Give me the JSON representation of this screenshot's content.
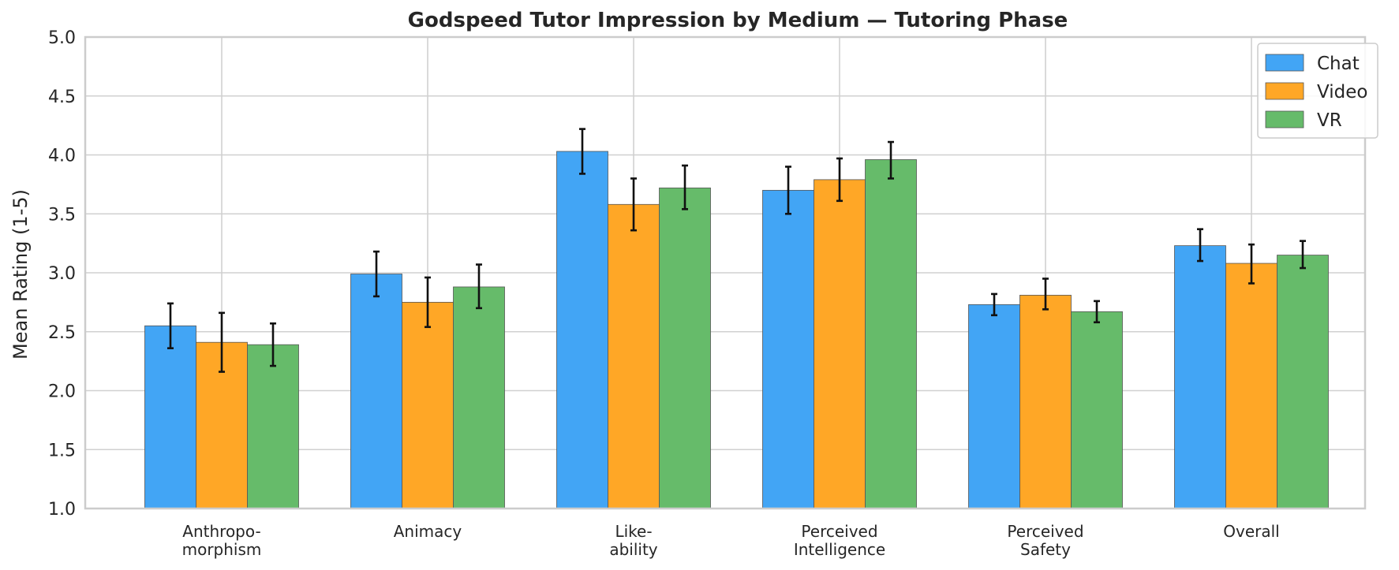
{
  "chart_data": {
    "type": "bar",
    "title": "Godspeed Tutor Impression by Medium — Tutoring Phase",
    "xlabel": "",
    "ylabel": "Mean Rating (1-5)",
    "ylim": [
      1.0,
      5.0
    ],
    "yticks": [
      "1.0",
      "1.5",
      "2.0",
      "2.5",
      "3.0",
      "3.5",
      "4.0",
      "4.5",
      "5.0"
    ],
    "categories": [
      [
        "Anthropo-",
        "morphism"
      ],
      [
        "Animacy"
      ],
      [
        "Like-",
        "ability"
      ],
      [
        "Perceived",
        "Intelligence"
      ],
      [
        "Perceived",
        "Safety"
      ],
      [
        "Overall"
      ]
    ],
    "grid": true,
    "legend_position": "top-right",
    "series": [
      {
        "name": "Chat",
        "color": "#42a5f5",
        "values": [
          2.55,
          2.99,
          4.03,
          3.7,
          2.73,
          3.23
        ],
        "err_low": [
          2.36,
          2.8,
          3.84,
          3.5,
          2.64,
          3.1
        ],
        "err_high": [
          2.74,
          3.18,
          4.22,
          3.9,
          2.82,
          3.37
        ]
      },
      {
        "name": "Video",
        "color": "#ffa726",
        "values": [
          2.41,
          2.75,
          3.58,
          3.79,
          2.81,
          3.08
        ],
        "err_low": [
          2.16,
          2.54,
          3.36,
          3.61,
          2.69,
          2.91
        ],
        "err_high": [
          2.66,
          2.96,
          3.8,
          3.97,
          2.95,
          3.24
        ]
      },
      {
        "name": "VR",
        "color": "#66bb6a",
        "values": [
          2.39,
          2.88,
          3.72,
          3.96,
          2.67,
          3.15
        ],
        "err_low": [
          2.21,
          2.7,
          3.54,
          3.8,
          2.58,
          3.04
        ],
        "err_high": [
          2.57,
          3.07,
          3.91,
          4.11,
          2.76,
          3.27
        ]
      }
    ]
  }
}
